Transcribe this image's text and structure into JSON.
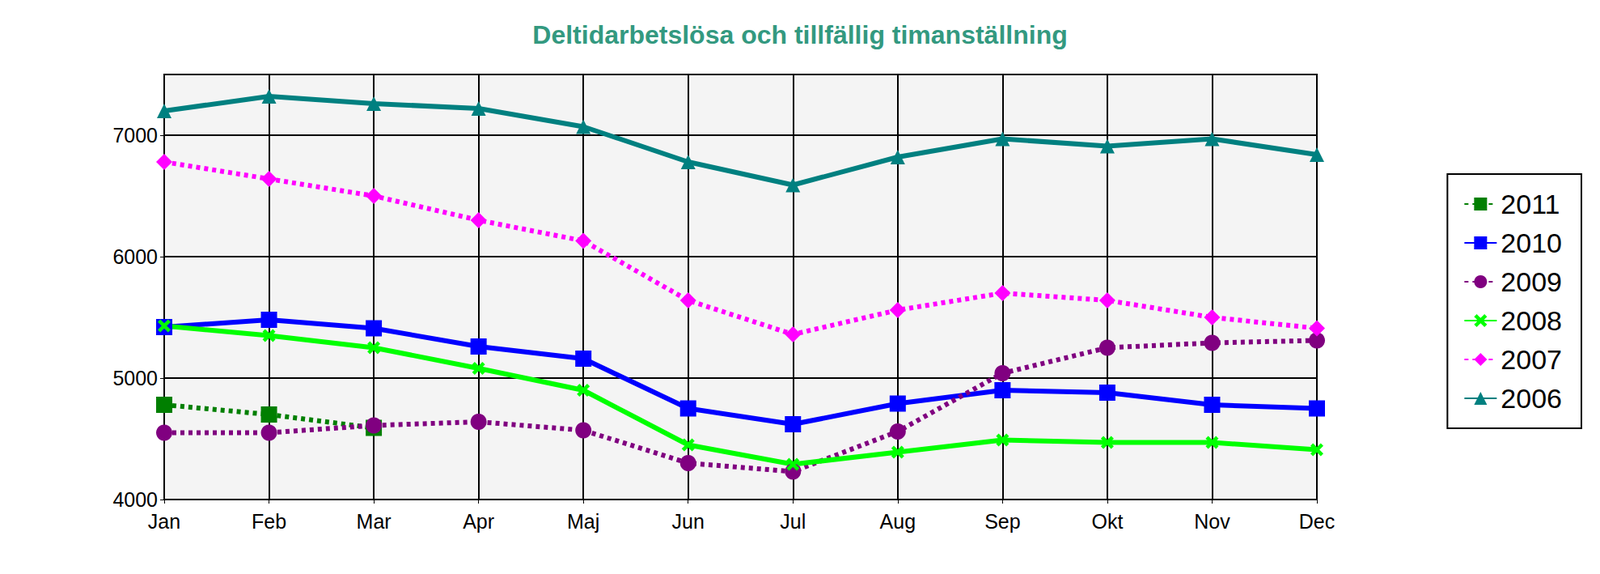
{
  "chart_data": {
    "type": "line",
    "title": "Deltidarbetslösa och tillfällig timanställning",
    "categories": [
      "Jan",
      "Feb",
      "Mar",
      "Apr",
      "Maj",
      "Jun",
      "Jul",
      "Aug",
      "Sep",
      "Okt",
      "Nov",
      "Dec"
    ],
    "series": [
      {
        "name": "2011",
        "color": "#007f00",
        "marker": "square",
        "line_style": "dotted",
        "values": [
          4780,
          4700,
          4590,
          null,
          null,
          null,
          null,
          null,
          null,
          null,
          null,
          null
        ]
      },
      {
        "name": "2010",
        "color": "#0000ff",
        "marker": "square",
        "line_style": "solid",
        "values": [
          5420,
          5480,
          5410,
          5260,
          5160,
          4750,
          4620,
          4790,
          4900,
          4880,
          4780,
          4750
        ]
      },
      {
        "name": "2009",
        "color": "#800080",
        "marker": "circle",
        "line_style": "dotted",
        "values": [
          4550,
          4550,
          4610,
          4640,
          4570,
          4300,
          4230,
          4560,
          5040,
          5250,
          5290,
          5310
        ]
      },
      {
        "name": "2008",
        "color": "#00ff00",
        "marker": "x",
        "line_style": "solid",
        "values": [
          5430,
          5350,
          5250,
          5080,
          4900,
          4450,
          4290,
          4390,
          4490,
          4470,
          4470,
          4410
        ]
      },
      {
        "name": "2007",
        "color": "#ff00ff",
        "marker": "diamond",
        "line_style": "dotted",
        "values": [
          6780,
          6640,
          6500,
          6300,
          6130,
          5640,
          5360,
          5560,
          5700,
          5640,
          5500,
          5410
        ]
      },
      {
        "name": "2006",
        "color": "#008080",
        "marker": "triangle",
        "line_style": "solid",
        "values": [
          7200,
          7320,
          7260,
          7220,
          7070,
          6780,
          6590,
          6820,
          6970,
          6910,
          6970,
          6840
        ]
      }
    ],
    "ylim": [
      4000,
      7500
    ],
    "yticks": [
      4000,
      5000,
      6000,
      7000
    ],
    "grid": true,
    "legend": "right"
  }
}
